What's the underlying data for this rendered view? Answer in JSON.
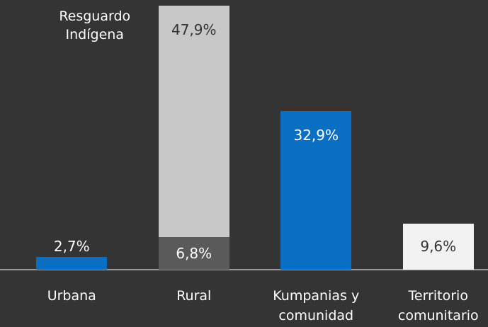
{
  "chart_data": {
    "type": "bar",
    "categories": [
      "Urbana",
      "Rural",
      "Kumpanias y comunidad",
      "Territorio comunitario"
    ],
    "series": [
      {
        "colors": [
          "#0a6fc2",
          "#5a5a5a",
          "#0a6fc2",
          "#f2f2f2"
        ],
        "values": [
          2.7,
          6.8,
          32.9,
          9.6
        ],
        "value_labels": [
          "2,7%",
          "6,8%",
          "32,9%",
          "9,6%"
        ]
      },
      {
        "name": "Resguardo Indígena",
        "color": "#c8c8c8",
        "values": [
          null,
          47.9,
          null,
          null
        ],
        "value_labels": [
          null,
          "47,9%",
          null,
          null
        ]
      }
    ],
    "ylim": [
      0,
      55
    ]
  }
}
